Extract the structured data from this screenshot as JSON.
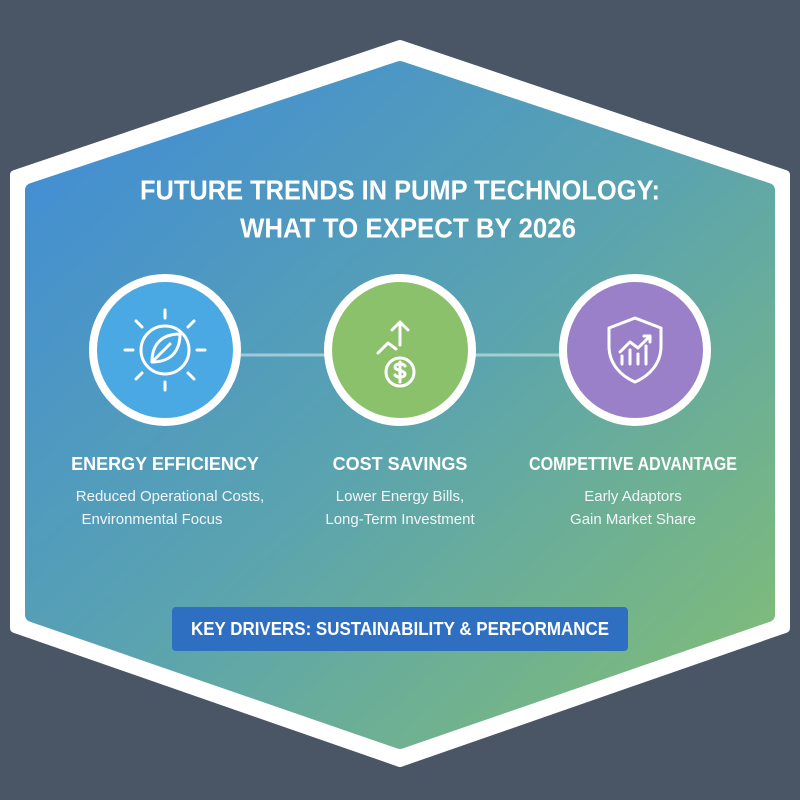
{
  "title": {
    "lines": [
      "FUTURE TRENDS IN PUMP TECHNOLOGY:",
      "WHAT TO EXPECT BY 2026"
    ]
  },
  "items": [
    {
      "title": "ENERGY EFFICIENCY",
      "description": [
        "Reduced Operational Costs,",
        "Environmental Focus"
      ]
    },
    {
      "title": "COST SAVINGS",
      "description": [
        "Lower Energy Bills,",
        "Long-Term Investment"
      ]
    },
    {
      "title": "COMPETTIVE ADVANTAGE",
      "description": [
        "Early Adaptors",
        "Gain Market Share"
      ]
    }
  ],
  "footer": {
    "badge": "KEY DRIVERS: SUSTAINABILITY & PERFORMANCE"
  }
}
